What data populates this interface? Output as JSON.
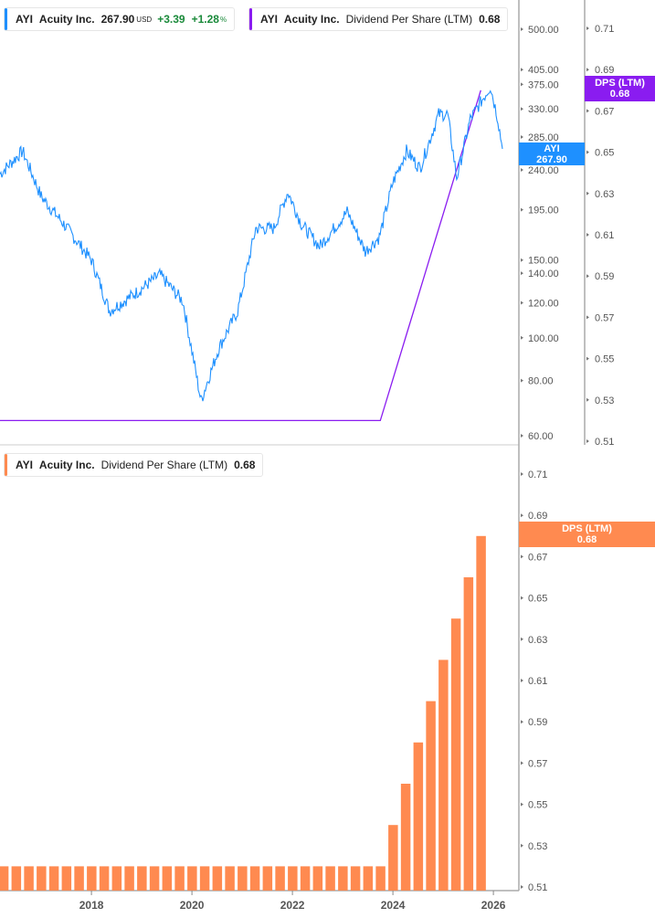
{
  "top_legend_price": {
    "ticker": "AYI",
    "name": "Acuity Inc.",
    "price": "267.90",
    "currency": "USD",
    "change": "+3.39",
    "change_pct": "+1.28",
    "pct_sign": "%",
    "color": "#1e90ff"
  },
  "top_legend_dps": {
    "ticker": "AYI",
    "name": "Acuity Inc.",
    "metric": "Dividend Per Share (LTM)",
    "value": "0.68",
    "color": "#8a1cf0"
  },
  "bottom_legend_dps": {
    "ticker": "AYI",
    "name": "Acuity Inc.",
    "metric": "Dividend Per Share (LTM)",
    "value": "0.68",
    "color": "#ff8a50"
  },
  "tags": {
    "price": {
      "label": "AYI",
      "value": "267.90",
      "color": "#1e90ff"
    },
    "dps_top": {
      "label": "DPS (LTM)",
      "value": "0.68",
      "color": "#8a1cf0"
    },
    "dps_bottom": {
      "label": "DPS (LTM)",
      "value": "0.68",
      "color": "#ff8a50"
    }
  },
  "chart_data": [
    {
      "type": "line",
      "scale": "log",
      "series": [
        {
          "name": "AYI",
          "color": "#1e90ff",
          "points": [
            [
              2016.18,
              235
            ],
            [
              2016.63,
              265
            ],
            [
              2017.0,
              209
            ],
            [
              2017.45,
              181
            ],
            [
              2018.0,
              150
            ],
            [
              2018.36,
              115
            ],
            [
              2018.91,
              127
            ],
            [
              2019.36,
              139
            ],
            [
              2019.82,
              121
            ],
            [
              2020.18,
              72
            ],
            [
              2020.54,
              95
            ],
            [
              2020.91,
              115
            ],
            [
              2021.27,
              177
            ],
            [
              2021.63,
              177
            ],
            [
              2021.91,
              214
            ],
            [
              2022.18,
              181
            ],
            [
              2022.54,
              161
            ],
            [
              2023.09,
              193
            ],
            [
              2023.45,
              157
            ],
            [
              2023.73,
              169
            ],
            [
              2024.0,
              225
            ],
            [
              2024.27,
              265
            ],
            [
              2024.54,
              242
            ],
            [
              2024.91,
              321
            ],
            [
              2025.09,
              321
            ],
            [
              2025.27,
              230
            ],
            [
              2025.54,
              313
            ],
            [
              2025.94,
              371
            ],
            [
              2026.09,
              313
            ],
            [
              2026.18,
              267.9
            ]
          ]
        }
      ],
      "y_ticks": [
        "500.00",
        "405.00",
        "375.00",
        "330.00",
        "285.00",
        "240.00",
        "195.00",
        "150.00",
        "140.00",
        "120.00",
        "100.00",
        "80.00",
        "60.00"
      ],
      "ylim": [
        60,
        500
      ]
    },
    {
      "type": "line",
      "series": [
        {
          "name": "DPS (LTM)",
          "color": "#8a1cf0",
          "points": [
            [
              2016.18,
              0.52
            ],
            [
              2023.75,
              0.52
            ],
            [
              2024.0,
              0.54
            ],
            [
              2024.25,
              0.56
            ],
            [
              2024.5,
              0.58
            ],
            [
              2024.75,
              0.6
            ],
            [
              2025.0,
              0.62
            ],
            [
              2025.25,
              0.64
            ],
            [
              2025.5,
              0.66
            ],
            [
              2025.75,
              0.68
            ]
          ]
        }
      ],
      "y_ticks": [
        "0.71",
        "0.69",
        "0.67",
        "0.65",
        "0.63",
        "0.61",
        "0.59",
        "0.57",
        "0.55",
        "0.53",
        "0.51"
      ],
      "ylim": [
        0.51,
        0.71
      ]
    },
    {
      "type": "bar",
      "series": [
        {
          "name": "DPS (LTM)",
          "color": "#ff8a50"
        }
      ],
      "bar_start": 2016.25,
      "bar_step_years": 0.25,
      "values": [
        0.52,
        0.52,
        0.52,
        0.52,
        0.52,
        0.52,
        0.52,
        0.52,
        0.52,
        0.52,
        0.52,
        0.52,
        0.52,
        0.52,
        0.52,
        0.52,
        0.52,
        0.52,
        0.52,
        0.52,
        0.52,
        0.52,
        0.52,
        0.52,
        0.52,
        0.52,
        0.52,
        0.52,
        0.52,
        0.52,
        0.52,
        0.54,
        0.56,
        0.58,
        0.6,
        0.62,
        0.64,
        0.66,
        0.68
      ],
      "y_ticks": [
        "0.71",
        "0.69",
        "0.67",
        "0.65",
        "0.63",
        "0.61",
        "0.59",
        "0.57",
        "0.55",
        "0.53",
        "0.51"
      ],
      "ylim": [
        0.51,
        0.71
      ],
      "x_ticks": [
        "2018",
        "2020",
        "2022",
        "2024",
        "2026"
      ]
    }
  ]
}
